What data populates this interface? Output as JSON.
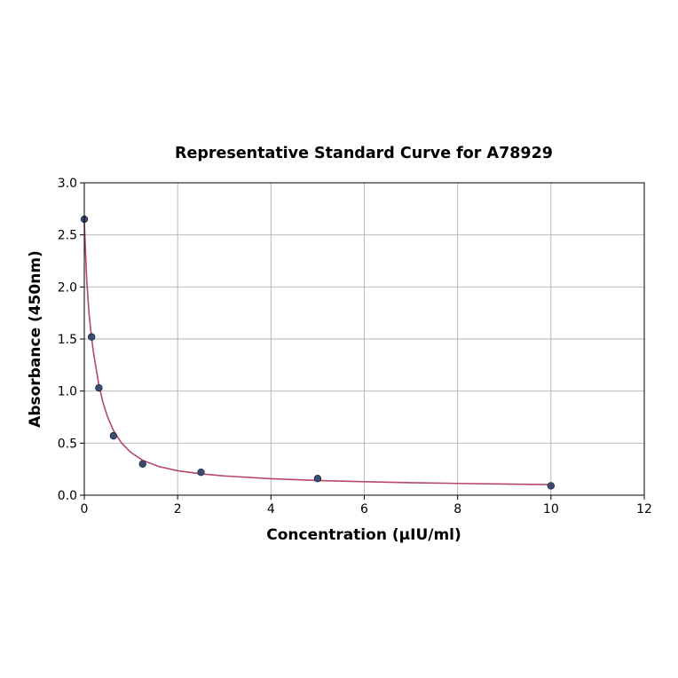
{
  "chart_data": {
    "type": "scatter",
    "title": "Representative Standard Curve for A78929",
    "xlabel": "Concentration (µIU/ml)",
    "ylabel": "Absorbance (450nm)",
    "xlim": [
      0,
      12
    ],
    "ylim": [
      0,
      3.0
    ],
    "xticks": [
      0,
      2,
      4,
      6,
      8,
      10,
      12
    ],
    "xtick_labels": [
      "0",
      "2",
      "4",
      "6",
      "8",
      "10",
      "12"
    ],
    "yticks": [
      0,
      0.5,
      1.0,
      1.5,
      2.0,
      2.5,
      3.0
    ],
    "ytick_labels": [
      "0.0",
      "0.5",
      "1.0",
      "1.5",
      "2.0",
      "2.5",
      "3.0"
    ],
    "grid": true,
    "series": [
      {
        "type": "scatter",
        "x": [
          0,
          0.156,
          0.312,
          0.625,
          1.25,
          2.5,
          5,
          10
        ],
        "y": [
          2.65,
          1.52,
          1.03,
          0.57,
          0.3,
          0.22,
          0.16,
          0.09
        ]
      },
      {
        "type": "line",
        "fit": "4PL",
        "x": [
          0,
          0.05,
          0.1,
          0.156,
          0.2,
          0.312,
          0.4,
          0.5,
          0.625,
          0.8,
          1.0,
          1.25,
          1.6,
          2.0,
          2.5,
          3.0,
          4.0,
          5.0,
          6.0,
          7.0,
          8.0,
          9.0,
          10.0
        ],
        "y": [
          2.62,
          2.08,
          1.75,
          1.51,
          1.36,
          1.06,
          0.89,
          0.75,
          0.62,
          0.5,
          0.41,
          0.335,
          0.275,
          0.235,
          0.205,
          0.185,
          0.158,
          0.141,
          0.129,
          0.12,
          0.113,
          0.107,
          0.102
        ]
      }
    ],
    "colors": {
      "points": "#3b4c70",
      "point_edge": "#1f2a44",
      "curve": "#b5476a",
      "grid": "#b0b0b0"
    }
  }
}
